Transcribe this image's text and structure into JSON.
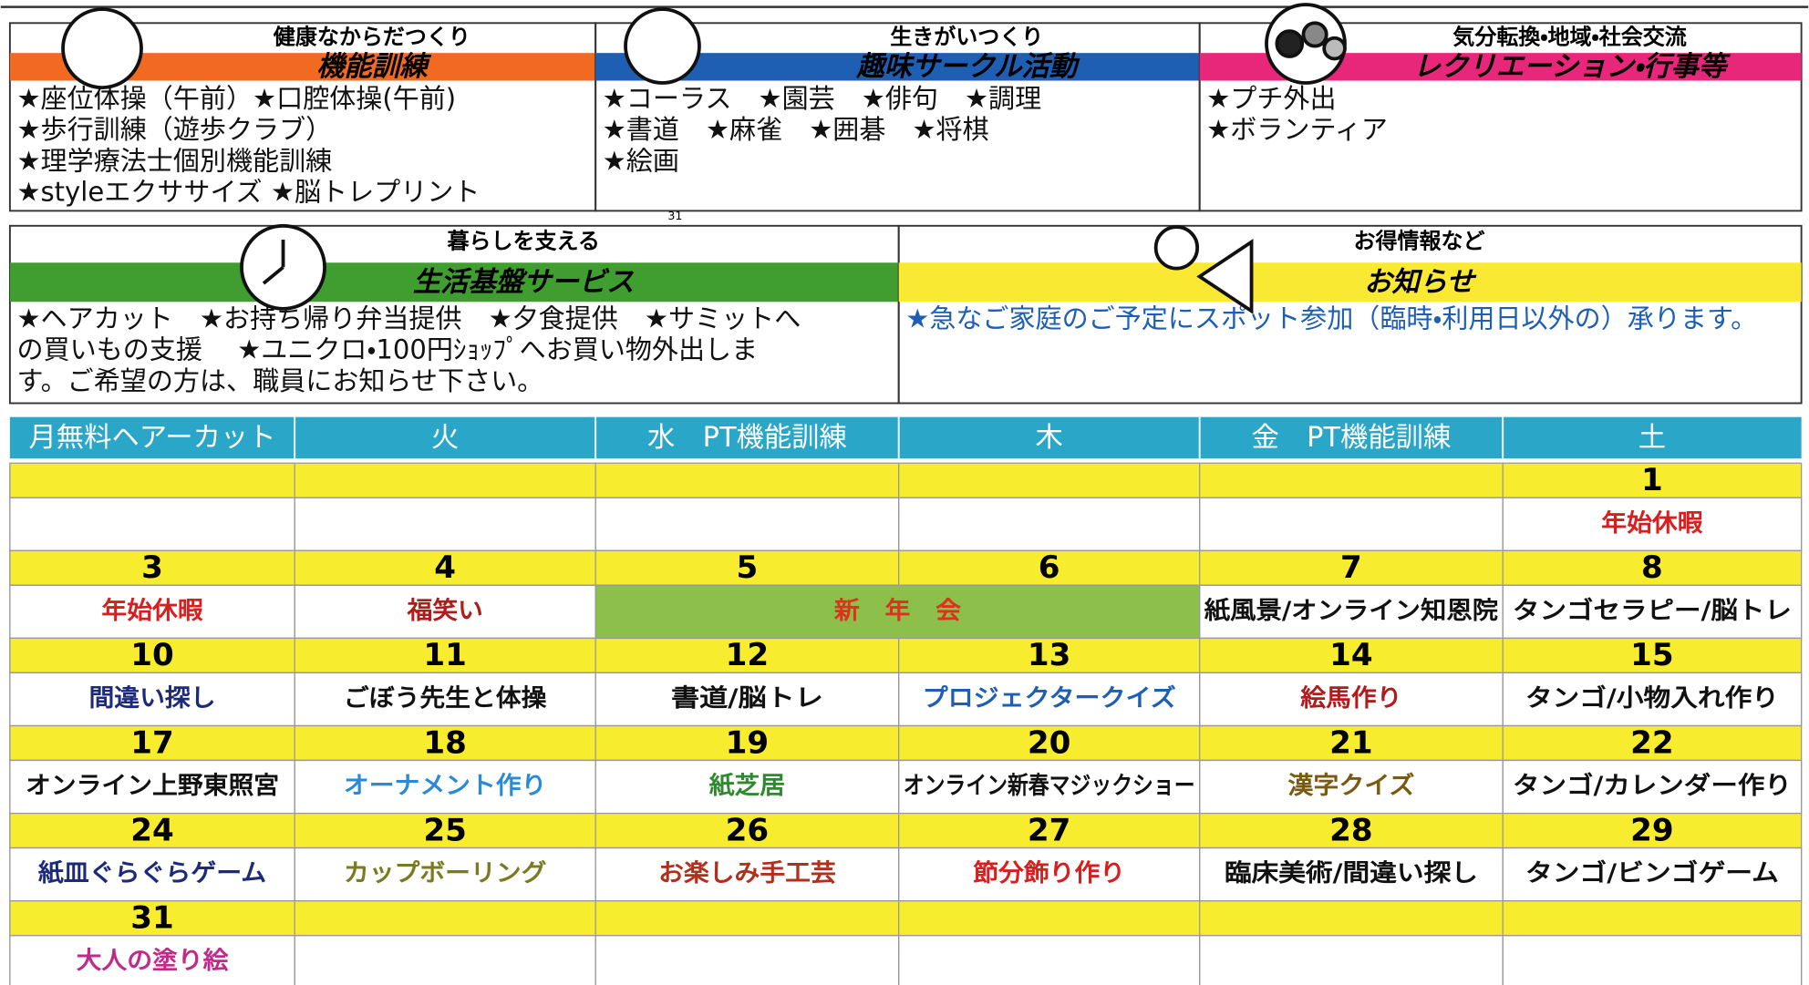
{
  "panels": [
    {
      "subtitle": "健康なからだつくり",
      "title": "機能訓練",
      "color": "#f26a21",
      "items": [
        "★座位体操（午前）★口腔体操(午前)",
        "★歩行訓練（遊歩クラブ）",
        "★理学療法士個別機能訓練",
        "★styleエクササイズ ★脳トレプリント"
      ]
    },
    {
      "subtitle": "生きがいつくり",
      "title": "趣味サークル活動",
      "color": "#1e5fb4",
      "items": [
        "★コーラス　★園芸　★俳句　★調理",
        "★書道　★麻雀　★囲碁　★将棋",
        "★絵画"
      ]
    },
    {
      "subtitle": "気分転換・地域・社会交流",
      "title": "レクリエーション・行事等",
      "color": "#e8267a",
      "items": [
        "★プチ外出",
        "★ボランティア"
      ]
    },
    {
      "subtitle": "暮らしを支える",
      "title": "生活基盤サービス",
      "color": "#3f9e2f",
      "items": [
        "★ヘアカット　★お持ち帰り弁当提供　★夕食提供　★サミットへ",
        "の買いもの支援　 ★ユニクロ・100円ｼｮｯﾌﾟへお買い物外出しま",
        "す。ご希望の方は、職員にお知らせ下さい。"
      ]
    },
    {
      "subtitle": "お得情報など",
      "title": "お知らせ",
      "color": "#f9e933",
      "item_color": "#1e5fb4",
      "items": [
        "★急なご家庭のご予定にスポット参加（臨時・利用日以外の）承ります。"
      ]
    }
  ],
  "stray_mark": "31",
  "calendar": {
    "headers": [
      "月無料ヘアーカット",
      "火",
      "水　PT機能訓練",
      "木",
      "金　PT機能訓練",
      "土"
    ],
    "weeks": [
      [
        {},
        {},
        {},
        {},
        {},
        {
          "date": "1",
          "event": "年始休暇",
          "color": "#d81e1e"
        }
      ],
      [
        {
          "date": "3",
          "event": "年始休暇",
          "color": "#d81e1e"
        },
        {
          "date": "4",
          "event": "福笑い",
          "color": "#b01c1c"
        },
        {
          "date": "5",
          "event": "新　年　会",
          "color": "#e0301e",
          "span": 2,
          "bg": "#8dc04a"
        },
        {
          "date": "6"
        },
        {
          "date": "7",
          "event": "紙風景/オンライン知恩院",
          "color": "#111"
        },
        {
          "date": "8",
          "event": "タンゴセラピー/脳トレ",
          "color": "#111"
        }
      ],
      [
        {
          "date": "10",
          "event": "間違い探し",
          "color": "#1d2a7a"
        },
        {
          "date": "11",
          "event": "ごぼう先生と体操",
          "color": "#111"
        },
        {
          "date": "12",
          "event": "書道/脳トレ",
          "color": "#111"
        },
        {
          "date": "13",
          "event": "プロジェクタークイズ",
          "color": "#1e5fb4"
        },
        {
          "date": "14",
          "event": "絵馬作り",
          "color": "#b01c1c"
        },
        {
          "date": "15",
          "event": "タンゴ/小物入れ作り",
          "color": "#111"
        }
      ],
      [
        {
          "date": "17",
          "event": "オンライン上野東照宮",
          "color": "#111"
        },
        {
          "date": "18",
          "event": "オーナメント作り",
          "color": "#2a8ad8"
        },
        {
          "date": "19",
          "event": "紙芝居",
          "color": "#2f8a2f"
        },
        {
          "date": "20",
          "event": "オンライン新春マジックショー",
          "color": "#111"
        },
        {
          "date": "21",
          "event": "漢字クイズ",
          "color": "#7a5a10"
        },
        {
          "date": "22",
          "event": "タンゴ/カレンダー作り",
          "color": "#111"
        }
      ],
      [
        {
          "date": "24",
          "event": "紙皿ぐらぐらゲーム",
          "color": "#1d2a7a"
        },
        {
          "date": "25",
          "event": "カップボーリング",
          "color": "#7a7a20"
        },
        {
          "date": "26",
          "event": "お楽しみ手工芸",
          "color": "#b0301c"
        },
        {
          "date": "27",
          "event": "節分飾り作り",
          "color": "#d81e1e"
        },
        {
          "date": "28",
          "event": "臨床美術/間違い探し",
          "color": "#111"
        },
        {
          "date": "29",
          "event": "タンゴ/ビンゴゲーム",
          "color": "#111"
        }
      ],
      [
        {
          "date": "31",
          "event": "大人の塗り絵",
          "color": "#c02a8a"
        },
        {},
        {},
        {},
        {},
        {}
      ]
    ]
  }
}
